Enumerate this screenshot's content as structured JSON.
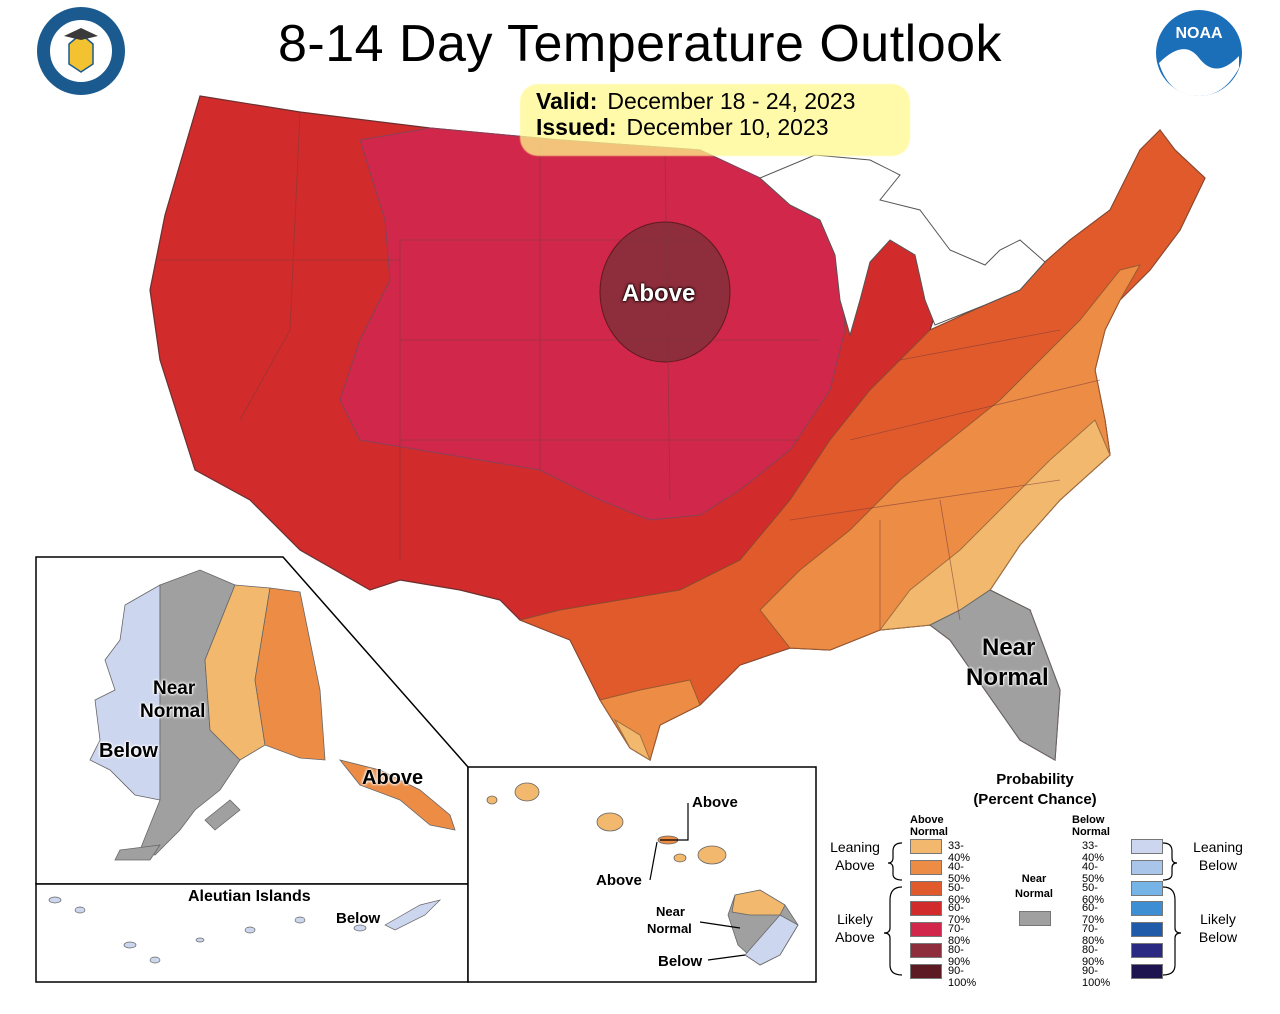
{
  "header": {
    "title": "8-14 Day Temperature Outlook",
    "valid_label": "Valid:",
    "valid_value": "December 18 - 24, 2023",
    "issued_label": "Issued:",
    "issued_value": "December 10, 2023"
  },
  "logos": {
    "left": "department-of-commerce-seal",
    "right": "noaa-logo",
    "noaa_text": "NOAA"
  },
  "map_labels": {
    "conus_above": "Above",
    "conus_near_1": "Near",
    "conus_near_2": "Normal",
    "alaska_near_1": "Near",
    "alaska_near_2": "Normal",
    "alaska_below": "Below",
    "alaska_above": "Above",
    "aleutian_title": "Aleutian Islands",
    "aleutian_below": "Below",
    "hawaii_above_1": "Above",
    "hawaii_above_2": "Above",
    "hawaii_near_1": "Near",
    "hawaii_near_2": "Normal",
    "hawaii_below": "Below"
  },
  "legend": {
    "title_1": "Probability",
    "title_2": "(Percent Chance)",
    "above_header": "Above Normal",
    "below_header": "Below Normal",
    "near_1": "Near",
    "near_2": "Normal",
    "leaning_above_1": "Leaning",
    "leaning_above_2": "Above",
    "likely_above_1": "Likely",
    "likely_above_2": "Above",
    "leaning_below_1": "Leaning",
    "leaning_below_2": "Below",
    "likely_below_1": "Likely",
    "likely_below_2": "Below",
    "above": [
      {
        "range": "33-40%",
        "color": "#f2b86e"
      },
      {
        "range": "40-50%",
        "color": "#ec8c45"
      },
      {
        "range": "50-60%",
        "color": "#e05a2b"
      },
      {
        "range": "60-70%",
        "color": "#d12b2b"
      },
      {
        "range": "70-80%",
        "color": "#d1274a"
      },
      {
        "range": "80-90%",
        "color": "#8e2d3b"
      },
      {
        "range": "90-100%",
        "color": "#5e1a22"
      }
    ],
    "below": [
      {
        "range": "33-40%",
        "color": "#cdd6ef"
      },
      {
        "range": "40-50%",
        "color": "#a9c5ea"
      },
      {
        "range": "50-60%",
        "color": "#76b3e6"
      },
      {
        "range": "60-70%",
        "color": "#3e8ed3"
      },
      {
        "range": "70-80%",
        "color": "#1f5ba8"
      },
      {
        "range": "80-90%",
        "color": "#2a2a82"
      },
      {
        "range": "90-100%",
        "color": "#1d1450"
      }
    ],
    "near_color": "#a0a0a0"
  }
}
